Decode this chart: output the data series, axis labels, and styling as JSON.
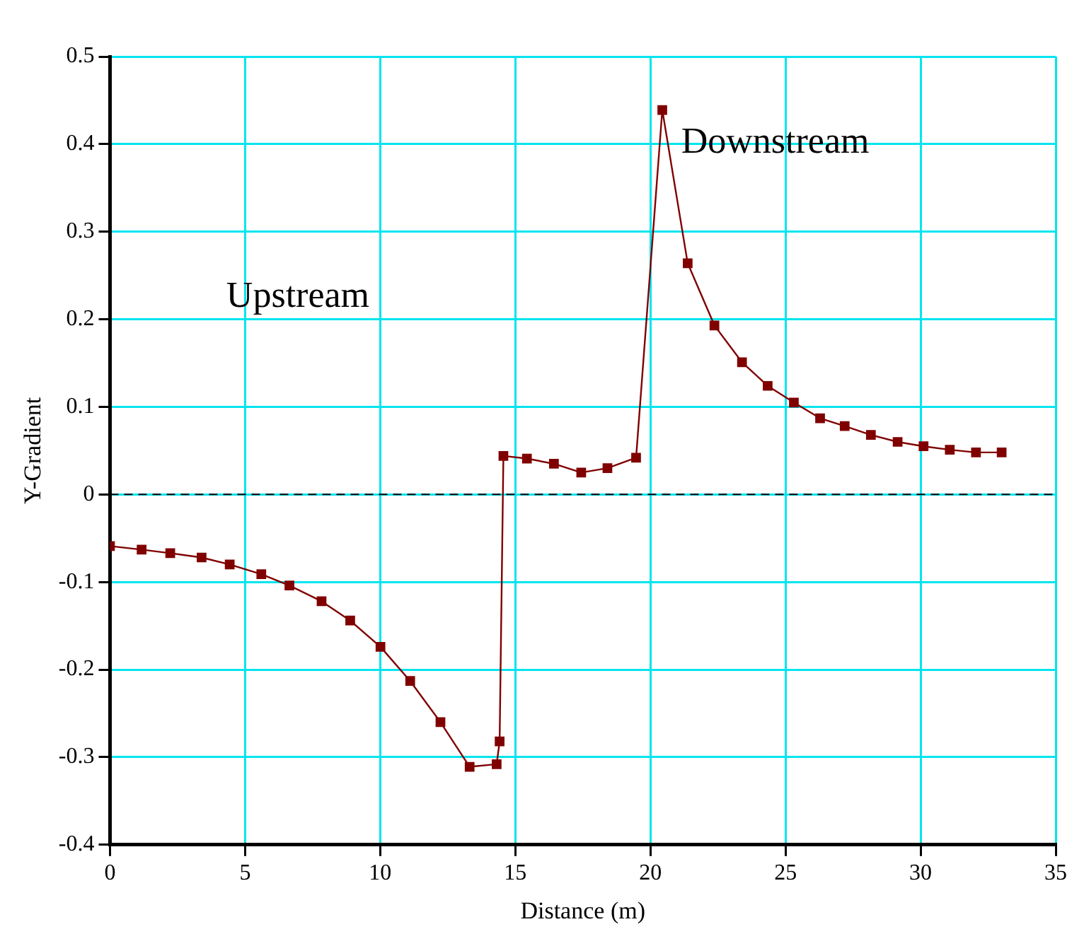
{
  "chart_data": {
    "type": "line",
    "xlabel": "Distance (m)",
    "ylabel": "Y-Gradient",
    "x": [
      0,
      1.17,
      2.23,
      3.39,
      4.43,
      5.6,
      6.64,
      7.83,
      8.89,
      10.01,
      11.11,
      12.23,
      13.31,
      14.31,
      14.42,
      14.56,
      15.43,
      16.43,
      17.44,
      18.41,
      19.47,
      20.44,
      21.38,
      22.37,
      23.39,
      24.34,
      25.31,
      26.28,
      27.19,
      28.16,
      29.15,
      30.11,
      31.08,
      32.05,
      33.0
    ],
    "series": [
      {
        "color": "#800000",
        "values": [
          -0.059,
          -0.063,
          -0.067,
          -0.072,
          -0.08,
          -0.091,
          -0.104,
          -0.122,
          -0.144,
          -0.174,
          -0.213,
          -0.26,
          -0.311,
          -0.308,
          -0.282,
          0.044,
          0.041,
          0.035,
          0.025,
          0.03,
          0.042,
          0.439,
          0.264,
          0.193,
          0.151,
          0.124,
          0.105,
          0.087,
          0.078,
          0.068,
          0.06,
          0.055,
          0.051,
          0.048,
          0.048
        ]
      }
    ],
    "xlim": [
      0,
      35
    ],
    "xticks": [
      0,
      5,
      10,
      15,
      20,
      25,
      30,
      35
    ],
    "ylim": [
      -0.4,
      0.5
    ],
    "yticks": [
      -0.4,
      -0.3,
      -0.2,
      -0.1,
      0,
      0.1,
      0.2,
      0.3,
      0.4,
      0.5
    ],
    "ref_lines": [
      {
        "axis": "y",
        "value": 0,
        "color": "#000000",
        "line_style": "dashed"
      }
    ],
    "annotations": [
      "Upstream",
      "Downstream"
    ],
    "grid": true,
    "legend": false,
    "marker": "square",
    "line_style": "solid"
  }
}
